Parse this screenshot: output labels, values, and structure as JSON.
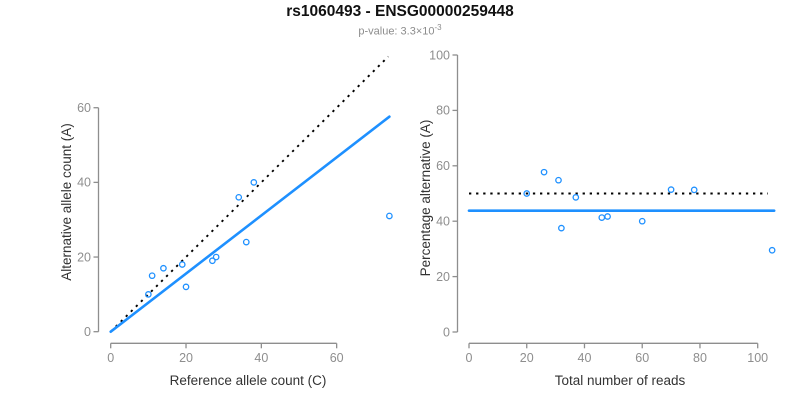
{
  "header": {
    "title": "rs1060493 - ENSG00000259448",
    "p_value_text": "p-value: 3.3×10",
    "p_value_exponent": "-3"
  },
  "colors": {
    "accent_blue": "#1E90FF",
    "axis_gray": "#8e8e8e",
    "reference_line_black": "#000000"
  },
  "chart_data": [
    {
      "type": "scatter",
      "xlabel": "Reference allele count (C)",
      "ylabel": "Alternative allele count (A)",
      "x_ticks": [
        0,
        20,
        40,
        60
      ],
      "y_ticks": [
        0,
        20,
        40,
        60
      ],
      "xlim": [
        0,
        74
      ],
      "ylim": [
        0,
        74
      ],
      "grid": false,
      "point_color": "#1E90FF",
      "points": [
        [
          10,
          10
        ],
        [
          11,
          15
        ],
        [
          14,
          17
        ],
        [
          19,
          18
        ],
        [
          20,
          12
        ],
        [
          27,
          19
        ],
        [
          28,
          20
        ],
        [
          34,
          36
        ],
        [
          36,
          24
        ],
        [
          38,
          40
        ],
        [
          74,
          31
        ]
      ],
      "lines": [
        {
          "name": "identity-line",
          "style": "dotted",
          "color": "#000000",
          "x1": 0,
          "y1": 0,
          "x2": 73.7,
          "y2": 73.7
        },
        {
          "name": "fit-line",
          "style": "solid",
          "color": "#1E90FF",
          "x1": 0,
          "y1": 0,
          "x2": 74,
          "y2": 57.6
        }
      ]
    },
    {
      "type": "scatter",
      "xlabel": "Total number of reads",
      "ylabel": "Percentage alternative (A)",
      "x_ticks": [
        0,
        20,
        40,
        60,
        80,
        100
      ],
      "y_ticks": [
        0,
        20,
        40,
        60,
        80,
        100
      ],
      "xlim": [
        0,
        106
      ],
      "ylim": [
        0,
        100
      ],
      "grid": false,
      "point_color": "#1E90FF",
      "points": [
        [
          20,
          50
        ],
        [
          26,
          57.7
        ],
        [
          31,
          54.8
        ],
        [
          32,
          37.5
        ],
        [
          37,
          48.6
        ],
        [
          46,
          41.3
        ],
        [
          48,
          41.7
        ],
        [
          60,
          40
        ],
        [
          70,
          51.4
        ],
        [
          78,
          51.3
        ],
        [
          105,
          29.5
        ]
      ],
      "lines": [
        {
          "name": "expected-50-percent-line",
          "style": "dotted",
          "color": "#000000",
          "x1": 0,
          "y1": 50,
          "x2": 103.5,
          "y2": 50
        },
        {
          "name": "mean-ratio-line",
          "style": "solid",
          "color": "#1E90FF",
          "x1": 0,
          "y1": 43.8,
          "x2": 105.7,
          "y2": 43.8
        }
      ]
    }
  ]
}
